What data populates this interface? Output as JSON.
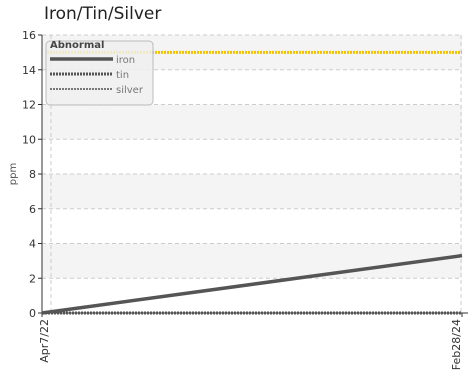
{
  "chart_data": {
    "type": "line",
    "title": "Iron/Tin/Silver",
    "xlabel": "",
    "ylabel": "ppm",
    "x_ticks": [
      "Apr7/22",
      "Feb28/24"
    ],
    "ylim": [
      0,
      16
    ],
    "y_ticks": [
      0,
      2,
      4,
      6,
      8,
      10,
      12,
      14,
      16
    ],
    "grid": true,
    "legend_position": "top-left",
    "legend_title": "Abnormal",
    "series": [
      {
        "name": "iron",
        "x": [
          "Apr7/22",
          "Feb28/24"
        ],
        "values": [
          0,
          3.3
        ],
        "color": "#555555"
      },
      {
        "name": "tin",
        "x": [
          "Apr7/22",
          "Feb28/24"
        ],
        "values": [
          0,
          0
        ],
        "color": "#555555"
      },
      {
        "name": "silver",
        "x": [
          "Apr7/22",
          "Feb28/24"
        ],
        "values": [
          0,
          0
        ],
        "color": "#777777"
      }
    ],
    "threshold": {
      "label": "Abnormal",
      "value": 15,
      "color": "#f2c200"
    }
  }
}
